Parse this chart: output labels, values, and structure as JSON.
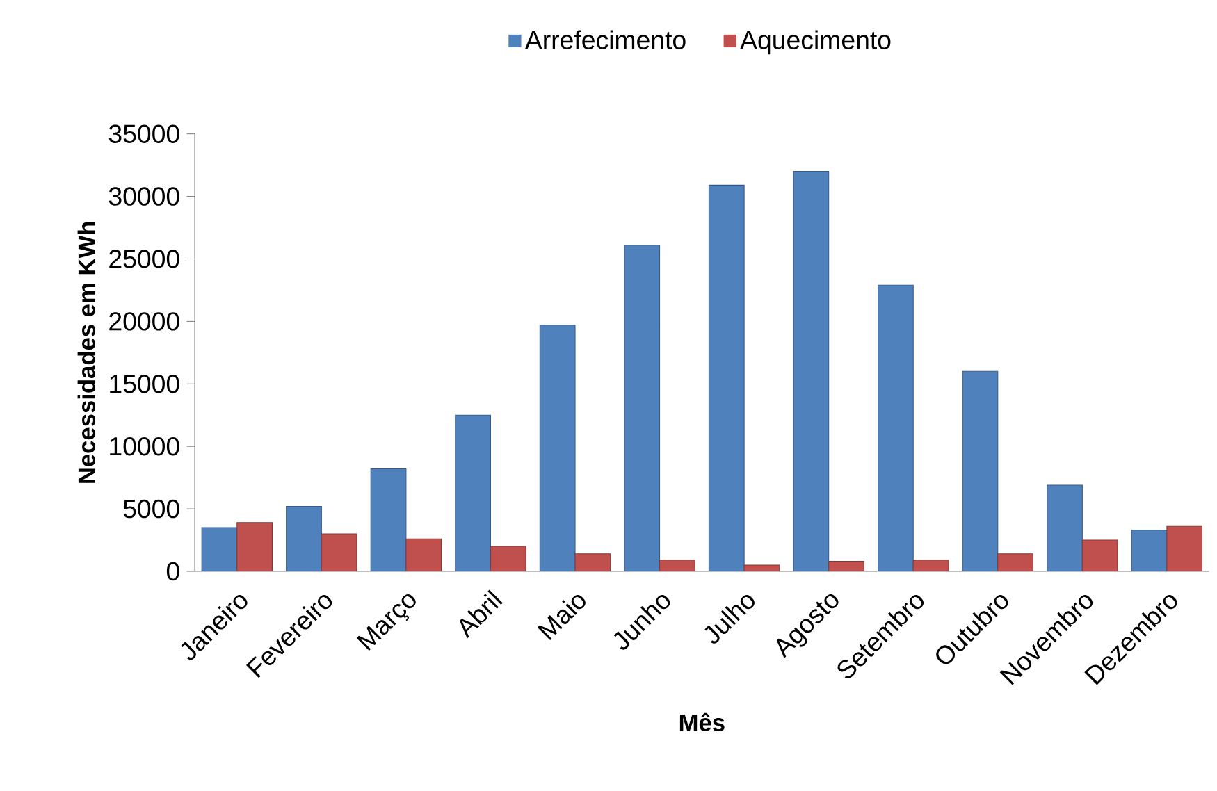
{
  "chart_data": {
    "type": "bar",
    "xlabel": "Mês",
    "ylabel": "Necessidades em KWh",
    "categories": [
      "Janeiro",
      "Fevereiro",
      "Março",
      "Abril",
      "Maio",
      "Junho",
      "Julho",
      "Agosto",
      "Setembro",
      "Outubro",
      "Novembro",
      "Dezembro"
    ],
    "series": [
      {
        "name": "Arrefecimento",
        "color": "#4f81bd",
        "values": [
          3500,
          5200,
          8200,
          12500,
          19700,
          26100,
          30900,
          32000,
          22900,
          16000,
          6900,
          3300
        ]
      },
      {
        "name": "Aquecimento",
        "color": "#c0504d",
        "values": [
          3900,
          3000,
          2600,
          2000,
          1400,
          900,
          500,
          800,
          900,
          1400,
          2500,
          3600
        ]
      }
    ],
    "ylim": [
      0,
      35000
    ],
    "yticks": [
      0,
      5000,
      10000,
      15000,
      20000,
      25000,
      30000,
      35000
    ],
    "legend": "top"
  }
}
